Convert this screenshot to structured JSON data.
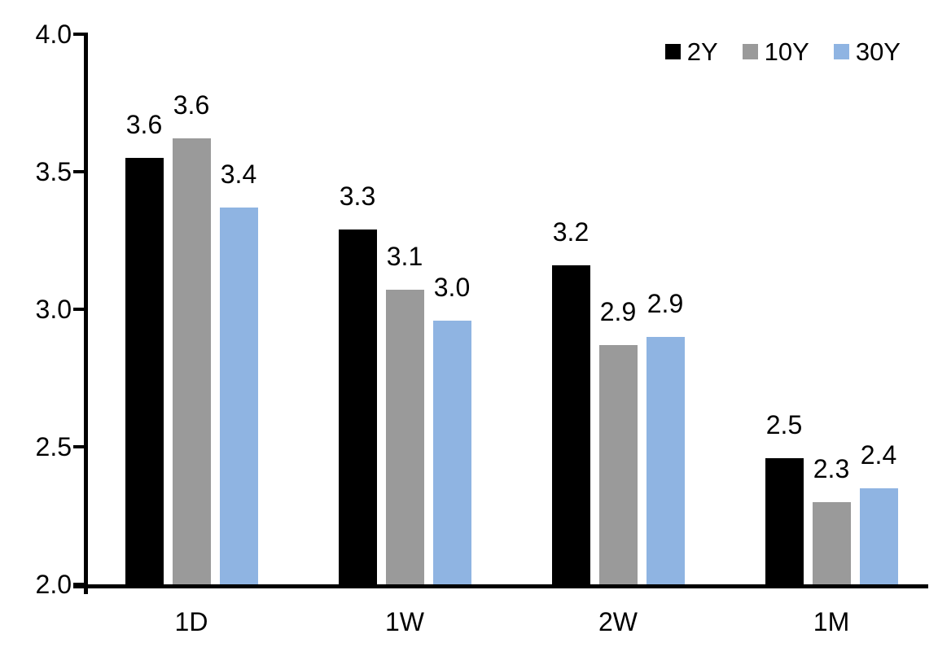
{
  "chart_data": {
    "type": "bar",
    "title": "",
    "xlabel": "",
    "ylabel": "",
    "categories": [
      "1D",
      "1W",
      "2W",
      "1M"
    ],
    "series": [
      {
        "name": "2Y",
        "color": "#000000",
        "values": [
          3.55,
          3.29,
          3.16,
          2.46
        ],
        "labels": [
          "3.6",
          "3.3",
          "3.2",
          "2.5"
        ]
      },
      {
        "name": "10Y",
        "color": "#9a9a9a",
        "values": [
          3.62,
          3.07,
          2.87,
          2.3
        ],
        "labels": [
          "3.6",
          "3.1",
          "2.9",
          "2.3"
        ]
      },
      {
        "name": "30Y",
        "color": "#8fb4e2",
        "values": [
          3.37,
          2.96,
          2.9,
          2.35
        ],
        "labels": [
          "3.4",
          "3.0",
          "2.9",
          "2.4"
        ]
      }
    ],
    "ylim": [
      2.0,
      4.0
    ],
    "yticks": [
      {
        "value": 4.0,
        "label": "4.0"
      },
      {
        "value": 3.5,
        "label": "3.5"
      },
      {
        "value": 3.0,
        "label": "3.0"
      },
      {
        "value": 2.5,
        "label": "2.5"
      },
      {
        "value": 2.0,
        "label": "2.0"
      }
    ],
    "grid": false,
    "legend_position": "top-right",
    "axis_color": "#000000",
    "background_color": "#ffffff"
  }
}
